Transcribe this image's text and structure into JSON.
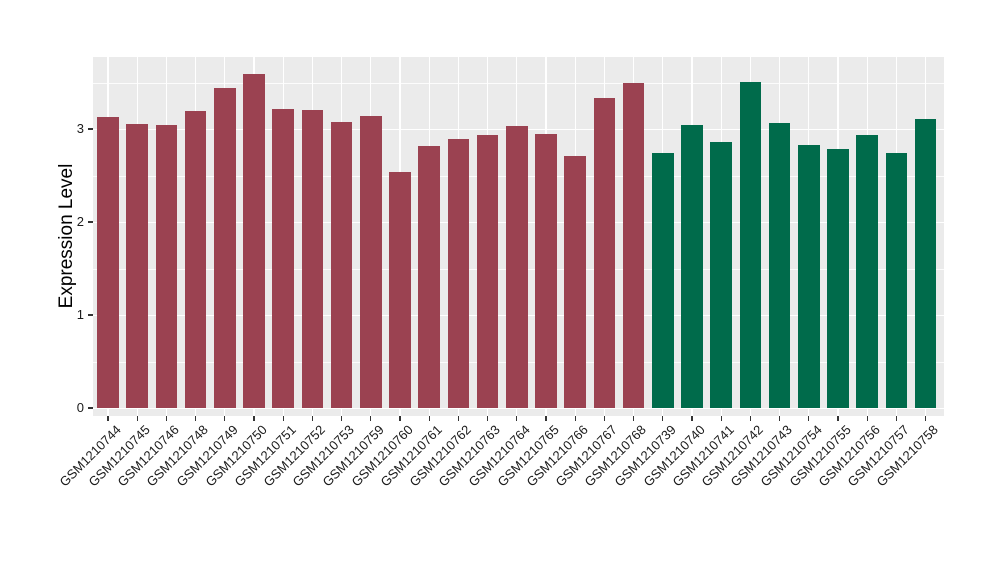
{
  "figure": {
    "background": "#FFFFFF",
    "panel_background": "#EBEBEB",
    "grid_color": "#FFFFFF",
    "tick_mark_color": "#333333",
    "axis_text_color": "#1A1A1A"
  },
  "chart_data": {
    "type": "bar",
    "title": "",
    "xlabel": "",
    "ylabel": "Expression Level",
    "ylim": [
      -0.08,
      3.77
    ],
    "yticks": [
      0,
      1,
      2,
      3
    ],
    "yticks_minor": [
      0.5,
      1.5,
      2.5,
      3.5
    ],
    "grid": "on",
    "legend": "none",
    "x_tick_rotation_deg": 45,
    "categories": [
      "GSM1210744",
      "GSM1210745",
      "GSM1210746",
      "GSM1210748",
      "GSM1210749",
      "GSM1210750",
      "GSM1210751",
      "GSM1210752",
      "GSM1210753",
      "GSM1210759",
      "GSM1210760",
      "GSM1210761",
      "GSM1210762",
      "GSM1210763",
      "GSM1210764",
      "GSM1210765",
      "GSM1210766",
      "GSM1210767",
      "GSM1210768",
      "GSM1210739",
      "GSM1210740",
      "GSM1210741",
      "GSM1210742",
      "GSM1210743",
      "GSM1210754",
      "GSM1210755",
      "GSM1210756",
      "GSM1210757",
      "GSM1210758"
    ],
    "values": [
      3.13,
      3.05,
      3.04,
      3.19,
      3.44,
      3.59,
      3.22,
      3.2,
      3.08,
      3.14,
      2.54,
      2.82,
      2.89,
      2.94,
      3.03,
      2.95,
      2.71,
      3.33,
      3.49,
      2.74,
      3.04,
      2.86,
      3.51,
      3.06,
      2.83,
      2.79,
      2.94,
      2.74,
      3.11
    ],
    "groups": [
      "A",
      "A",
      "A",
      "A",
      "A",
      "A",
      "A",
      "A",
      "A",
      "A",
      "A",
      "A",
      "A",
      "A",
      "A",
      "A",
      "A",
      "A",
      "A",
      "B",
      "B",
      "B",
      "B",
      "B",
      "B",
      "B",
      "B",
      "B",
      "B"
    ],
    "group_colors": {
      "A": "#9B4251",
      "B": "#006B4B"
    }
  }
}
